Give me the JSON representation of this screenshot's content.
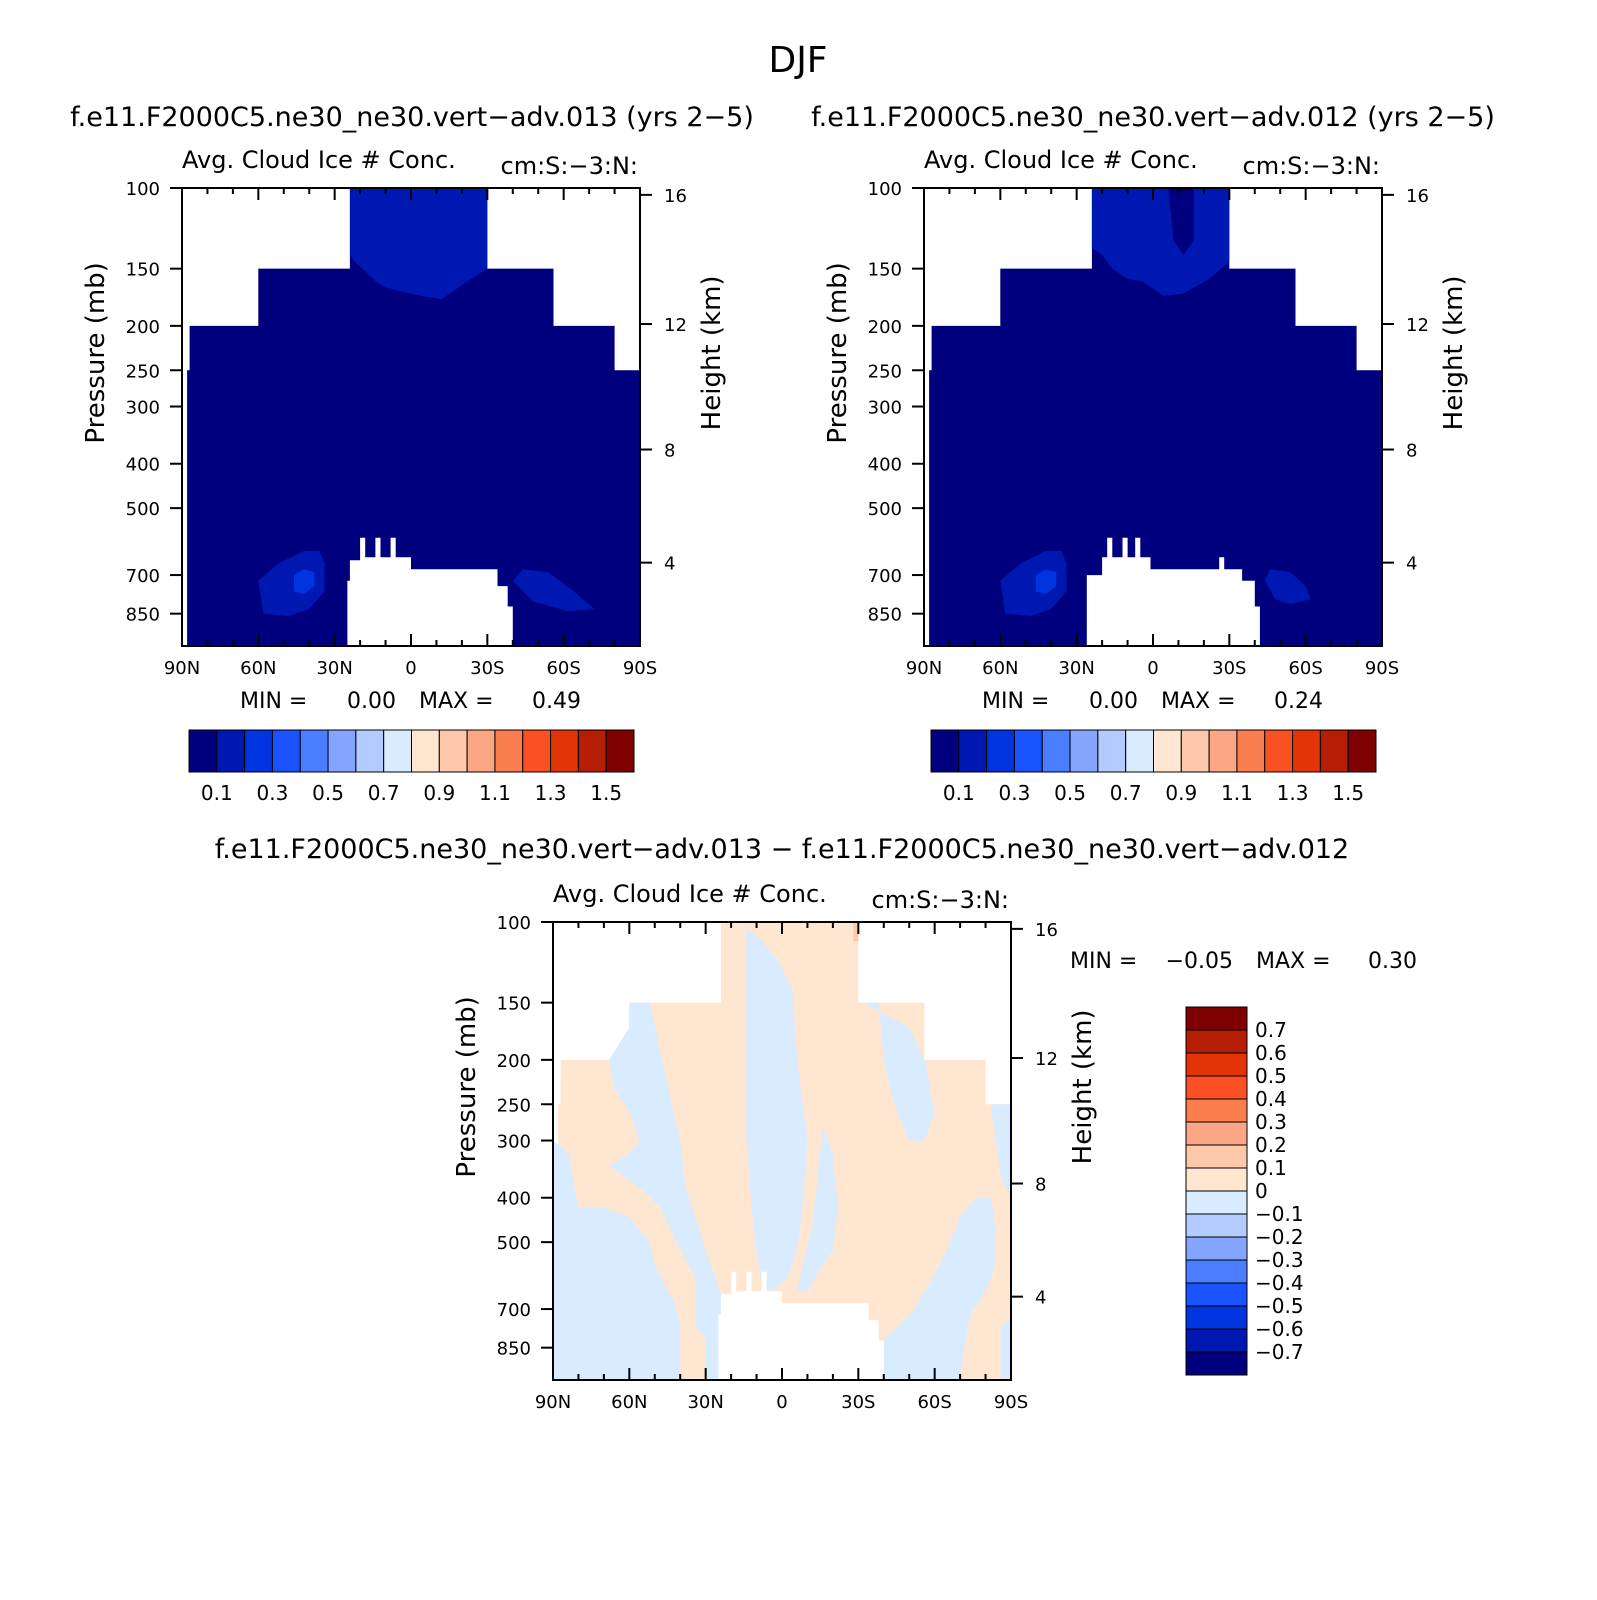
{
  "page": {
    "title": "DJF"
  },
  "chart_data": [
    {
      "type": "heatmap",
      "case_title": "f.e11.F2000C5.ne30_ne30.vert-adv.013 (yrs 2-5)",
      "title": "Avg. Cloud Ice # Conc.",
      "units": "cm:S:-3:N:",
      "ylabel": "Pressure (mb)",
      "ylabel_right": "Height (km)",
      "x_ticks": [
        "90N",
        "60N",
        "30N",
        "0",
        "30S",
        "60S",
        "90S"
      ],
      "y_ticks": [
        100,
        150,
        200,
        250,
        300,
        400,
        500,
        700,
        850
      ],
      "y_right_ticks": [
        16,
        12,
        8,
        4
      ],
      "ylim": [
        100,
        1000
      ],
      "min_text": "MIN =",
      "min_value": "0.00",
      "max_text": "MAX =",
      "max_value": "0.49",
      "colorbar_levels": [
        "0.1",
        "0.3",
        "0.5",
        "0.7",
        "0.9",
        "1.1",
        "1.3",
        "1.5"
      ],
      "colorbar_colors": [
        "#00007f",
        "#0018b2",
        "#0034e0",
        "#1a52ff",
        "#4b7dff",
        "#83a4ff",
        "#b4cbff",
        "#d9ebff",
        "#ffe6d0",
        "#fdc8aa",
        "#fba684",
        "#fb7e4f",
        "#fb5023",
        "#e33408",
        "#b51d04",
        "#7f0000"
      ],
      "regions": [
        {
          "label": "dominant value 0.0-0.1 (deep blue) over most of domain"
        },
        {
          "label": "0.1-0.2 above 150 mb near equator and lower troposphere patches"
        },
        {
          "label": "0.2-0.3 small maximum near 45N 700 mb"
        }
      ]
    },
    {
      "type": "heatmap",
      "case_title": "f.e11.F2000C5.ne30_ne30.vert-adv.012 (yrs 2-5)",
      "title": "Avg. Cloud Ice # Conc.",
      "units": "cm:S:-3:N:",
      "ylabel": "Pressure (mb)",
      "ylabel_right": "Height (km)",
      "x_ticks": [
        "90N",
        "60N",
        "30N",
        "0",
        "30S",
        "60S",
        "90S"
      ],
      "y_ticks": [
        100,
        150,
        200,
        250,
        300,
        400,
        500,
        700,
        850
      ],
      "y_right_ticks": [
        16,
        12,
        8,
        4
      ],
      "ylim": [
        100,
        1000
      ],
      "min_text": "MIN =",
      "min_value": "0.00",
      "max_text": "MAX =",
      "max_value": "0.24",
      "colorbar_levels": [
        "0.1",
        "0.3",
        "0.5",
        "0.7",
        "0.9",
        "1.1",
        "1.3",
        "1.5"
      ],
      "colorbar_colors": [
        "#00007f",
        "#0018b2",
        "#0034e0",
        "#1a52ff",
        "#4b7dff",
        "#83a4ff",
        "#b4cbff",
        "#d9ebff",
        "#ffe6d0",
        "#fdc8aa",
        "#fba684",
        "#fb7e4f",
        "#fb5023",
        "#e33408",
        "#b51d04",
        "#7f0000"
      ]
    },
    {
      "type": "heatmap",
      "case_title": "f.e11.F2000C5.ne30_ne30.vert-adv.013 - f.e11.F2000C5.ne30_ne30.vert-adv.012",
      "title": "Avg. Cloud Ice # Conc.",
      "units": "cm:S:-3:N:",
      "ylabel": "Pressure (mb)",
      "ylabel_right": "Height (km)",
      "x_ticks": [
        "90N",
        "60N",
        "30N",
        "0",
        "30S",
        "60S",
        "90S"
      ],
      "y_ticks": [
        100,
        150,
        200,
        250,
        300,
        400,
        500,
        700,
        850
      ],
      "y_right_ticks": [
        16,
        12,
        8,
        4
      ],
      "ylim": [
        100,
        1000
      ],
      "min_text": "MIN =",
      "min_value": "-0.05",
      "max_text": "MAX =",
      "max_value": "0.30",
      "colorbar_levels": [
        "0.7",
        "0.6",
        "0.5",
        "0.4",
        "0.3",
        "0.2",
        "0.1",
        "0",
        "-0.1",
        "-0.2",
        "-0.3",
        "-0.4",
        "-0.5",
        "-0.6",
        "-0.7"
      ],
      "colorbar_colors": [
        "#7f0000",
        "#b51d04",
        "#e33408",
        "#fb5023",
        "#fb7e4f",
        "#fba684",
        "#fdc8aa",
        "#ffe6d0",
        "#d9ebff",
        "#b4cbff",
        "#83a4ff",
        "#4b7dff",
        "#1a52ff",
        "#0034e0",
        "#0018b2",
        "#00007f"
      ]
    }
  ]
}
